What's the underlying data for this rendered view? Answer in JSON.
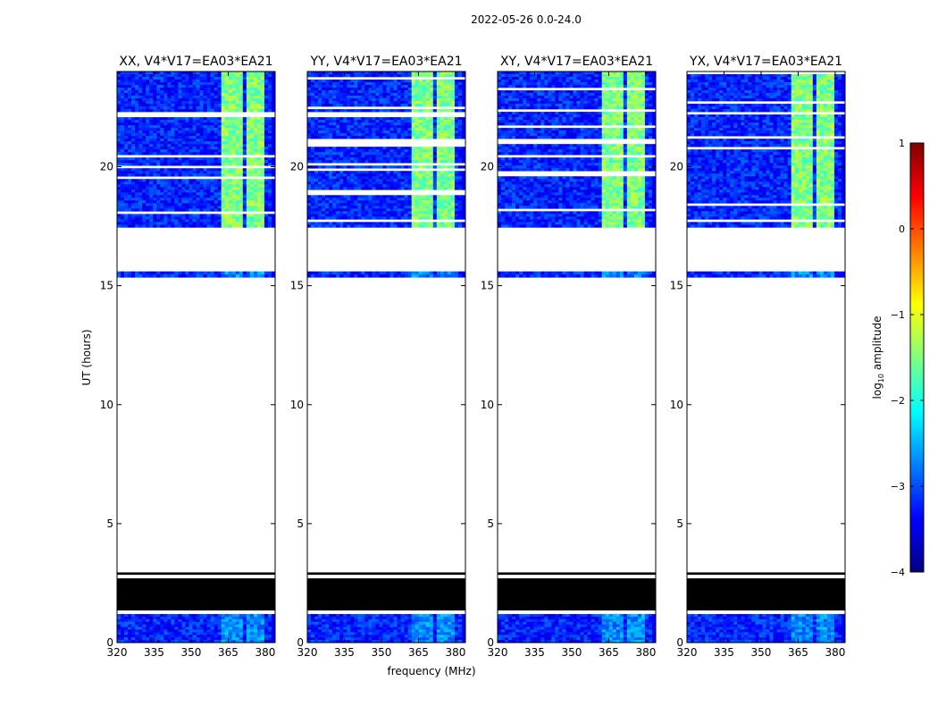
{
  "chart_data": {
    "type": "heatmap",
    "title": "2022-05-26 0.0-24.0",
    "xlabel": "frequency (MHz)",
    "ylabel": "UT (hours)",
    "xlim": [
      320,
      384
    ],
    "ylim": [
      0,
      24
    ],
    "x_ticks": [
      320,
      335,
      350,
      365,
      380
    ],
    "y_ticks": [
      0,
      5,
      10,
      15,
      20
    ],
    "panels": [
      {
        "title": "XX, V4*V17=EA03*EA21"
      },
      {
        "title": "YY, V4*V17=EA03*EA21"
      },
      {
        "title": "XY, V4*V17=EA03*EA21"
      },
      {
        "title": "YX, V4*V17=EA03*EA21"
      }
    ],
    "colorbar": {
      "label_main": "log",
      "label_sub": "10",
      "label_tail": " amplitude",
      "min": -4,
      "max": 1,
      "ticks": [
        -4,
        -3,
        -2,
        -1,
        0,
        1
      ],
      "colormap": "jet"
    },
    "data_bands": [
      [
        0.0,
        1.2
      ],
      [
        15.35,
        15.6
      ],
      [
        17.45,
        24.0
      ]
    ],
    "flagged_bands": [
      [
        1.35,
        2.7
      ],
      [
        2.85,
        2.95
      ]
    ],
    "rfi_columns": [
      [
        362,
        366
      ],
      [
        367,
        371
      ],
      [
        372,
        376
      ],
      [
        377,
        380
      ]
    ],
    "base_level": -3.2,
    "rfi_level": -1.5
  },
  "colors": {
    "axes": "#000000",
    "flagged": "#000000",
    "blank": "#ffffff"
  }
}
